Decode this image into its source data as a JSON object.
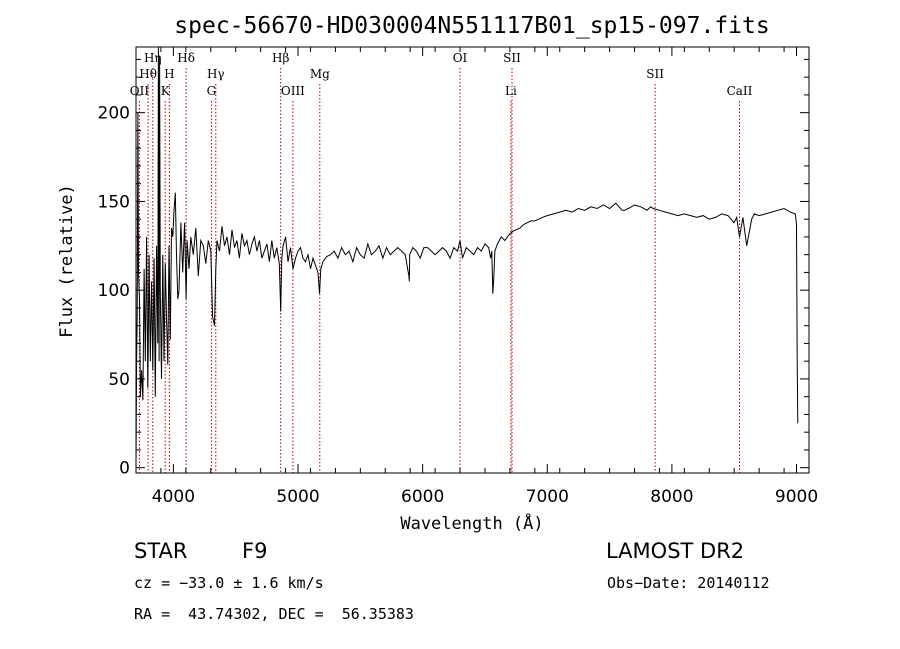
{
  "chart_data": {
    "type": "line",
    "title": "spec-56670-HD030004N551117B01_sp15-097.fits",
    "xlabel": "Wavelength (Å)",
    "ylabel": "Flux (relative)",
    "xlim": [
      3700,
      9100
    ],
    "ylim": [
      -3,
      237
    ],
    "xticks": [
      4000,
      5000,
      6000,
      7000,
      8000,
      9000
    ],
    "yticks": [
      0,
      50,
      100,
      150,
      200
    ],
    "grid": false,
    "line_color": "#000000",
    "marker_color": "#b00000",
    "spectrum": {
      "x": [
        3700,
        3705,
        3710,
        3715,
        3720,
        3728,
        3735,
        3745,
        3755,
        3765,
        3775,
        3785,
        3795,
        3805,
        3815,
        3825,
        3835,
        3845,
        3855,
        3865,
        3875,
        3880,
        3885,
        3889,
        3895,
        3905,
        3915,
        3925,
        3935,
        3945,
        3955,
        3965,
        3975,
        3985,
        3995,
        4005,
        4015,
        4025,
        4035,
        4045,
        4060,
        4075,
        4090,
        4102,
        4110,
        4125,
        4140,
        4160,
        4180,
        4200,
        4220,
        4240,
        4260,
        4280,
        4300,
        4315,
        4330,
        4340,
        4350,
        4370,
        4390,
        4410,
        4430,
        4450,
        4470,
        4490,
        4510,
        4530,
        4550,
        4570,
        4590,
        4610,
        4630,
        4650,
        4670,
        4690,
        4710,
        4730,
        4750,
        4770,
        4790,
        4810,
        4830,
        4850,
        4861,
        4870,
        4880,
        4900,
        4920,
        4940,
        4960,
        4980,
        5000,
        5020,
        5040,
        5060,
        5080,
        5100,
        5120,
        5140,
        5160,
        5172,
        5183,
        5200,
        5230,
        5260,
        5290,
        5320,
        5350,
        5380,
        5410,
        5440,
        5470,
        5500,
        5530,
        5560,
        5590,
        5620,
        5650,
        5680,
        5710,
        5740,
        5770,
        5800,
        5830,
        5860,
        5890,
        5893,
        5896,
        5920,
        5950,
        5980,
        6010,
        6040,
        6070,
        6100,
        6130,
        6160,
        6190,
        6220,
        6250,
        6280,
        6300,
        6320,
        6350,
        6380,
        6410,
        6440,
        6470,
        6500,
        6530,
        6545,
        6555,
        6563,
        6570,
        6580,
        6600,
        6630,
        6660,
        6690,
        6720,
        6750,
        6780,
        6810,
        6840,
        6870,
        6900,
        6930,
        6960,
        7000,
        7050,
        7100,
        7150,
        7200,
        7250,
        7300,
        7350,
        7400,
        7450,
        7500,
        7550,
        7600,
        7620,
        7650,
        7700,
        7750,
        7800,
        7830,
        7850,
        7900,
        7950,
        8000,
        8050,
        8100,
        8150,
        8200,
        8250,
        8300,
        8350,
        8400,
        8450,
        8498,
        8520,
        8542,
        8570,
        8600,
        8640,
        8662,
        8700,
        8750,
        8800,
        8850,
        8900,
        8950,
        8990,
        9000,
        9005,
        9010
      ],
      "y": [
        0,
        60,
        85,
        200,
        110,
        95,
        40,
        55,
        38,
        112,
        60,
        130,
        45,
        120,
        60,
        105,
        55,
        118,
        40,
        125,
        70,
        240,
        60,
        232,
        100,
        50,
        120,
        60,
        115,
        85,
        58,
        125,
        72,
        135,
        130,
        145,
        155,
        120,
        95,
        100,
        138,
        110,
        138,
        95,
        128,
        112,
        130,
        120,
        135,
        108,
        128,
        125,
        115,
        128,
        122,
        85,
        80,
        112,
        128,
        122,
        136,
        125,
        130,
        120,
        134,
        124,
        128,
        118,
        132,
        125,
        128,
        120,
        126,
        130,
        122,
        128,
        118,
        122,
        126,
        116,
        128,
        118,
        124,
        115,
        88,
        118,
        125,
        130,
        116,
        124,
        112,
        118,
        122,
        124,
        118,
        116,
        120,
        112,
        118,
        114,
        110,
        98,
        112,
        116,
        119,
        120,
        122,
        118,
        124,
        120,
        122,
        116,
        124,
        120,
        118,
        126,
        120,
        122,
        125,
        118,
        124,
        120,
        122,
        124,
        122,
        120,
        108,
        105,
        120,
        124,
        122,
        118,
        124,
        124,
        122,
        120,
        122,
        124,
        122,
        118,
        124,
        122,
        128,
        118,
        124,
        122,
        120,
        124,
        122,
        126,
        124,
        118,
        122,
        98,
        106,
        122,
        126,
        130,
        128,
        131,
        133,
        134,
        135,
        137,
        138,
        139,
        139,
        140,
        141,
        142,
        143,
        144,
        145,
        144,
        146,
        145,
        147,
        146,
        148,
        146,
        149,
        145,
        145,
        146,
        148,
        147,
        145,
        147,
        146,
        145,
        144,
        143,
        142,
        143,
        142,
        141,
        142,
        140,
        141,
        143,
        142,
        138,
        141,
        130,
        141,
        125,
        140,
        143,
        142,
        143,
        144,
        145,
        146,
        144,
        143,
        137,
        60,
        25
      ]
    },
    "line_ids": [
      {
        "label": "Hη",
        "wavelength": 3835
      },
      {
        "label": "Hθ",
        "wavelength": 3797
      },
      {
        "label": "OII",
        "wavelength": 3727
      },
      {
        "label": "Hδ",
        "wavelength": 4102
      },
      {
        "label": "H",
        "wavelength": 3968
      },
      {
        "label": "K",
        "wavelength": 3934
      },
      {
        "label": "Hγ",
        "wavelength": 4340
      },
      {
        "label": "G",
        "wavelength": 4305
      },
      {
        "label": "Hβ",
        "wavelength": 4861
      },
      {
        "label": "OIII",
        "wavelength": 4959
      },
      {
        "label": "Mg",
        "wavelength": 5175
      },
      {
        "label": "OI",
        "wavelength": 6300
      },
      {
        "label": "SII",
        "wavelength": 6717
      },
      {
        "label": "Li",
        "wavelength": 6708
      },
      {
        "label": "SII",
        "wavelength": 7865
      },
      {
        "label": "CaII",
        "wavelength": 8542
      }
    ]
  },
  "info": {
    "object_type": "STAR",
    "subclass": "F9",
    "cz": "cz = −33.0 ± 1.6 km/s",
    "radec": "RA =  43.74302, DEC =  56.35383",
    "survey": "LAMOST DR2",
    "obs_date": "Obs−Date: 20140112"
  }
}
